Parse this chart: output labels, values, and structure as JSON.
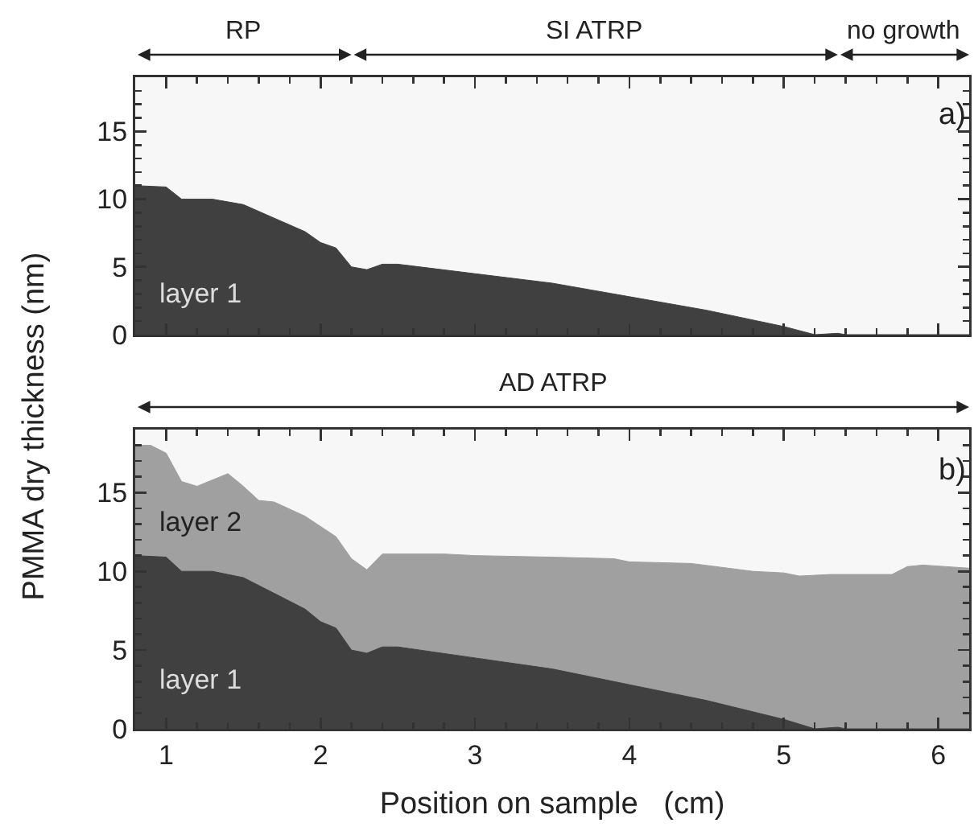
{
  "chart_data": [
    {
      "type": "area",
      "ylabel": "PMMA dry thickness   (nm)",
      "xlim": [
        0.8,
        6.2
      ],
      "ylim": [
        0,
        19
      ],
      "xticks": [
        1,
        2,
        3,
        4,
        5,
        6
      ],
      "yticks": [
        0,
        5,
        10,
        15
      ],
      "tick_labels": "y",
      "grid": false,
      "annotations": [
        "a)"
      ],
      "bands": [
        {
          "axis": "x",
          "from": 0.8,
          "to": 2.2,
          "label": "RP"
        },
        {
          "axis": "x",
          "from": 2.2,
          "to": 5.35,
          "label": "SI ATRP"
        },
        {
          "axis": "x",
          "from": 5.35,
          "to": 6.2,
          "label": "no growth"
        }
      ],
      "series": [
        {
          "name": "layer 1",
          "color": "#404040",
          "x": [
            0.8,
            1.0,
            1.1,
            1.3,
            1.5,
            1.7,
            1.9,
            2.0,
            2.1,
            2.2,
            2.3,
            2.4,
            2.5,
            3.0,
            3.5,
            4.0,
            4.5,
            5.0,
            5.2,
            5.35,
            5.4,
            6.2
          ],
          "values": [
            11,
            10.9,
            10,
            10,
            9.6,
            8.6,
            7.6,
            6.8,
            6.4,
            5.0,
            4.8,
            5.2,
            5.2,
            4.5,
            3.8,
            2.8,
            1.8,
            0.6,
            0,
            0.1,
            0,
            0
          ]
        }
      ]
    },
    {
      "type": "area",
      "xlabel": "Position on sample   (cm)",
      "xlim": [
        0.8,
        6.2
      ],
      "ylim": [
        0,
        19
      ],
      "xticks": [
        1,
        2,
        3,
        4,
        5,
        6
      ],
      "yticks": [
        0,
        5,
        10,
        15
      ],
      "grid": false,
      "annotations": [
        "b)"
      ],
      "bands": [
        {
          "axis": "x",
          "from": 0.8,
          "to": 6.2,
          "label": "AD ATRP"
        }
      ],
      "series": [
        {
          "name": "layer 2",
          "color": "#a0a0a0",
          "x": [
            0.8,
            0.9,
            1.0,
            1.1,
            1.2,
            1.4,
            1.5,
            1.6,
            1.7,
            1.9,
            2.1,
            2.2,
            2.3,
            2.4,
            2.8,
            3.0,
            3.5,
            3.9,
            4.0,
            4.4,
            4.8,
            5.0,
            5.1,
            5.3,
            5.7,
            5.8,
            5.9,
            6.2
          ],
          "values": [
            18,
            18,
            17.5,
            15.7,
            15.4,
            16.2,
            15.4,
            14.5,
            14.4,
            13.5,
            12.2,
            10.8,
            10.1,
            11.1,
            11.1,
            11.0,
            10.9,
            10.8,
            10.6,
            10.5,
            10.0,
            9.9,
            9.7,
            9.8,
            9.8,
            10.3,
            10.4,
            10.2
          ]
        },
        {
          "name": "layer 1",
          "color": "#404040",
          "x": [
            0.8,
            1.0,
            1.1,
            1.3,
            1.5,
            1.7,
            1.9,
            2.0,
            2.1,
            2.2,
            2.3,
            2.4,
            2.5,
            3.0,
            3.5,
            4.0,
            4.5,
            5.0,
            5.2,
            5.35,
            5.4,
            6.2
          ],
          "values": [
            11,
            10.9,
            10,
            10,
            9.6,
            8.6,
            7.6,
            6.8,
            6.4,
            5.0,
            4.8,
            5.2,
            5.2,
            4.5,
            3.8,
            2.8,
            1.8,
            0.6,
            0,
            0.1,
            0,
            0
          ]
        }
      ]
    }
  ]
}
